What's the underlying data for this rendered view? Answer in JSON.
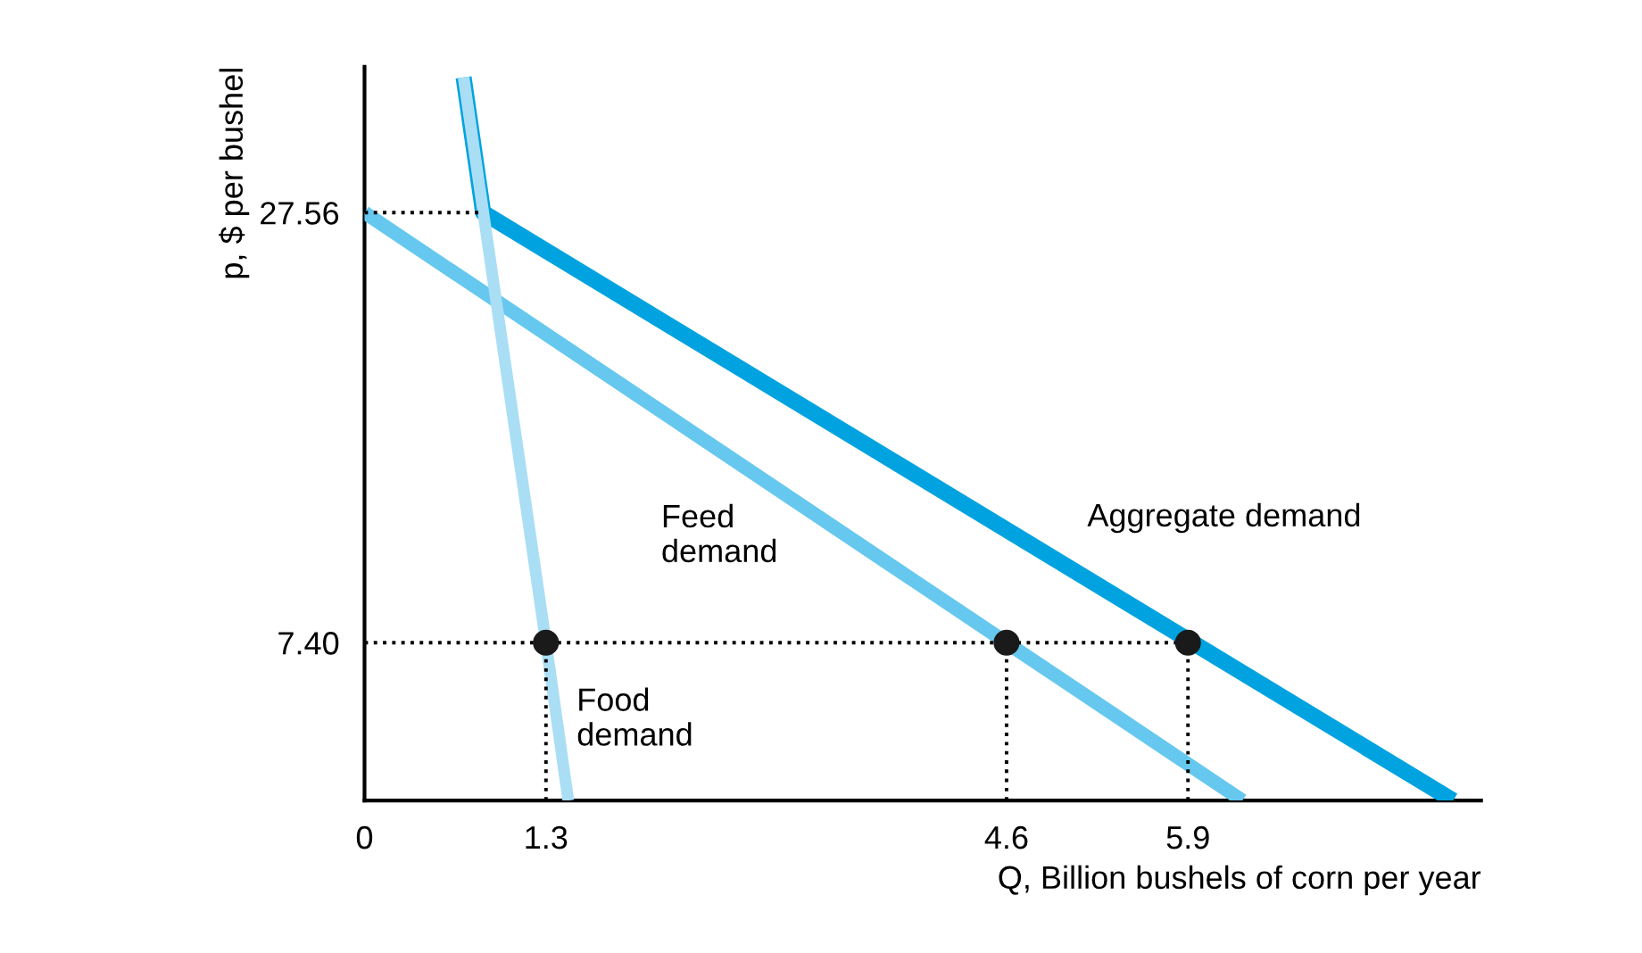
{
  "chart_data": {
    "type": "line",
    "xlabel": "Q, Billion bushels of corn per year",
    "ylabel": "p, $ per bushel",
    "xlim": [
      0,
      8.0
    ],
    "ylim": [
      0,
      34.4
    ],
    "xticks": [
      0,
      1.3,
      4.6,
      5.9
    ],
    "yticks": [
      {
        "value": 7.4,
        "label": "7.40"
      },
      27.56
    ],
    "grid": false,
    "legend": false,
    "series": [
      {
        "x": [
          0.71,
          0.85,
          7.8
        ],
        "values": [
          33.9,
          27.56,
          0
        ],
        "color": "#00a3e0",
        "line_style": "solid",
        "marker": "none"
      },
      {
        "x": [
          0,
          4.6,
          6.29
        ],
        "values": [
          27.56,
          7.4,
          0
        ],
        "color": "#66c8ee",
        "line_style": "solid",
        "marker": "none"
      },
      {
        "x": [
          0.71,
          1.3,
          1.46
        ],
        "values": [
          33.9,
          7.4,
          0
        ],
        "color": "#a9def5",
        "line_style": "solid",
        "marker": "none"
      },
      {
        "x": [
          0,
          0.85
        ],
        "values": [
          27.56,
          27.56
        ],
        "color": "#000000",
        "line_style": "dotted",
        "marker": "none"
      },
      {
        "x": [
          0,
          5.9
        ],
        "values": [
          7.4,
          7.4
        ],
        "color": "#000000",
        "line_style": "dotted",
        "marker": "none"
      },
      {
        "x": [
          1.3,
          1.3
        ],
        "values": [
          0,
          7.4
        ],
        "color": "#000000",
        "line_style": "dotted",
        "marker": "none"
      },
      {
        "x": [
          4.6,
          4.6
        ],
        "values": [
          0,
          7.4
        ],
        "color": "#000000",
        "line_style": "dotted",
        "marker": "none"
      },
      {
        "x": [
          5.9,
          5.9
        ],
        "values": [
          0,
          7.4
        ],
        "color": "#000000",
        "line_style": "dotted",
        "marker": "none"
      },
      {
        "type": "scatter",
        "x": [
          1.3,
          4.6,
          5.9
        ],
        "values": [
          7.4,
          7.4,
          7.4
        ],
        "color": "#1a1a1a",
        "marker": "circle"
      }
    ],
    "annotations": [
      "Aggregate demand",
      "Feed\ndemand",
      "Food\ndemand"
    ]
  }
}
